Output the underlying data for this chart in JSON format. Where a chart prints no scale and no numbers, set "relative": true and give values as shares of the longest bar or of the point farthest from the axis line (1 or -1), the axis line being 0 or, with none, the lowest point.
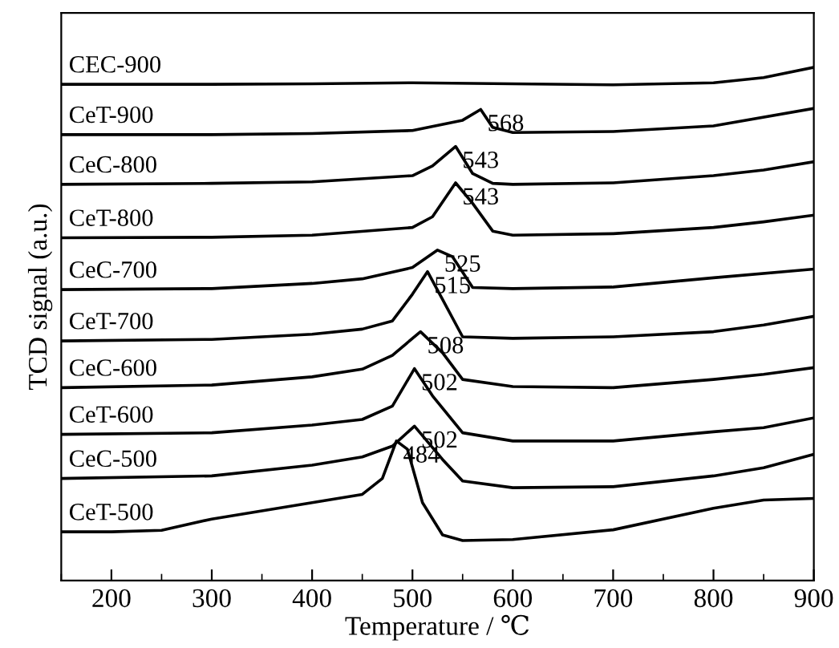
{
  "chart_data": {
    "type": "line",
    "relative": true,
    "xlabel": "Temperature / ℃",
    "ylabel": "TCD signal (a.u.)",
    "xlim": [
      150,
      900
    ],
    "xticks": [
      200,
      300,
      400,
      500,
      600,
      700,
      800,
      900
    ],
    "grid": false,
    "legend": false,
    "marker": "none",
    "line_style": "solid",
    "series": [
      {
        "name": "CEC-900",
        "color": "#000000",
        "x": [
          150,
          300,
          400,
          500,
          600,
          700,
          800,
          850,
          900
        ],
        "values": [
          0.967,
          0.967,
          0.968,
          0.97,
          0.968,
          0.966,
          0.97,
          0.98,
          1.0
        ]
      },
      {
        "name": "CeT-900",
        "color": "#000000",
        "x": [
          150,
          300,
          400,
          500,
          550,
          568,
          580,
          600,
          700,
          800,
          900
        ],
        "values": [
          0.869,
          0.869,
          0.871,
          0.877,
          0.897,
          0.918,
          0.883,
          0.873,
          0.875,
          0.886,
          0.92
        ]
      },
      {
        "name": "CeC-800",
        "color": "#000000",
        "x": [
          150,
          300,
          400,
          500,
          520,
          543,
          560,
          580,
          600,
          700,
          800,
          850,
          900
        ],
        "values": [
          0.772,
          0.774,
          0.777,
          0.789,
          0.808,
          0.846,
          0.793,
          0.774,
          0.772,
          0.775,
          0.789,
          0.8,
          0.816
        ]
      },
      {
        "name": "CeT-800",
        "color": "#000000",
        "x": [
          150,
          300,
          400,
          500,
          520,
          543,
          560,
          580,
          600,
          700,
          800,
          850,
          900
        ],
        "values": [
          0.668,
          0.669,
          0.673,
          0.688,
          0.709,
          0.775,
          0.735,
          0.681,
          0.673,
          0.676,
          0.688,
          0.699,
          0.712
        ]
      },
      {
        "name": "CeC-700",
        "color": "#000000",
        "x": [
          150,
          300,
          400,
          450,
          500,
          525,
          540,
          560,
          600,
          700,
          800,
          900
        ],
        "values": [
          0.567,
          0.569,
          0.579,
          0.588,
          0.61,
          0.644,
          0.631,
          0.571,
          0.569,
          0.572,
          0.59,
          0.607
        ]
      },
      {
        "name": "CeT-700",
        "color": "#000000",
        "x": [
          150,
          300,
          400,
          450,
          480,
          500,
          515,
          530,
          550,
          600,
          700,
          800,
          850,
          900
        ],
        "values": [
          0.467,
          0.47,
          0.48,
          0.49,
          0.506,
          0.558,
          0.602,
          0.548,
          0.475,
          0.472,
          0.475,
          0.485,
          0.498,
          0.515
        ]
      },
      {
        "name": "CeC-600",
        "color": "#000000",
        "x": [
          150,
          300,
          400,
          450,
          480,
          508,
          530,
          550,
          600,
          700,
          800,
          850,
          900
        ],
        "values": [
          0.376,
          0.381,
          0.397,
          0.412,
          0.439,
          0.485,
          0.444,
          0.392,
          0.378,
          0.376,
          0.392,
          0.402,
          0.415
        ]
      },
      {
        "name": "CeT-600",
        "color": "#000000",
        "x": [
          150,
          300,
          400,
          450,
          480,
          502,
          520,
          550,
          600,
          700,
          800,
          850,
          900
        ],
        "values": [
          0.285,
          0.288,
          0.303,
          0.314,
          0.34,
          0.413,
          0.36,
          0.288,
          0.272,
          0.272,
          0.29,
          0.298,
          0.317
        ]
      },
      {
        "name": "CeC-500",
        "color": "#000000",
        "x": [
          150,
          300,
          400,
          450,
          480,
          502,
          530,
          550,
          600,
          700,
          800,
          850,
          900
        ],
        "values": [
          0.199,
          0.204,
          0.225,
          0.241,
          0.262,
          0.301,
          0.236,
          0.194,
          0.181,
          0.183,
          0.204,
          0.22,
          0.246
        ]
      },
      {
        "name": "CeT-500",
        "color": "#000000",
        "x": [
          150,
          200,
          250,
          300,
          400,
          450,
          470,
          484,
          495,
          510,
          530,
          550,
          600,
          700,
          800,
          850,
          900
        ],
        "values": [
          0.095,
          0.095,
          0.098,
          0.12,
          0.152,
          0.168,
          0.199,
          0.272,
          0.256,
          0.152,
          0.089,
          0.078,
          0.08,
          0.099,
          0.141,
          0.157,
          0.16
        ]
      }
    ],
    "annotations": [
      {
        "text": "568",
        "x": 568,
        "y": 0.918
      },
      {
        "text": "543",
        "x": 543,
        "y": 0.846
      },
      {
        "text": "543",
        "x": 543,
        "y": 0.775
      },
      {
        "text": "525",
        "x": 525,
        "y": 0.644
      },
      {
        "text": "515",
        "x": 515,
        "y": 0.602
      },
      {
        "text": "508",
        "x": 508,
        "y": 0.485
      },
      {
        "text": "502",
        "x": 502,
        "y": 0.413
      },
      {
        "text": "502",
        "x": 502,
        "y": 0.301
      },
      {
        "text": "484",
        "x": 484,
        "y": 0.272
      }
    ]
  }
}
